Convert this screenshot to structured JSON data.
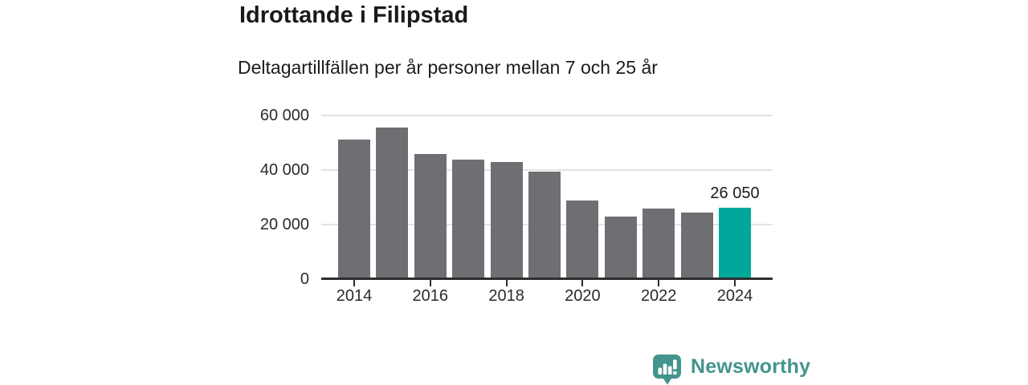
{
  "title": "Idrottande i Filipstad",
  "subtitle": "Deltagartillfällen per år personer mellan 7 och 25 år",
  "footer": {
    "brand": "Newsworthy",
    "logo_icon": "bar-chart-speech-bubble-icon"
  },
  "colors": {
    "bar": "#6f6e73",
    "bar_highlight": "#00a79b",
    "grid": "#e3e3e3",
    "axis": "#2d2d2d",
    "text": "#1a1a1a",
    "brand": "#43948d"
  },
  "chart_data": {
    "type": "bar",
    "title": "Idrottande i Filipstad",
    "subtitle": "Deltagartillfällen per år personer mellan 7 och 25 år",
    "x": [
      2014,
      2015,
      2016,
      2017,
      2018,
      2019,
      2020,
      2021,
      2022,
      2023,
      2024
    ],
    "values": [
      51100,
      55500,
      46000,
      43800,
      42900,
      39300,
      28800,
      22900,
      25900,
      24400,
      26050
    ],
    "highlight_index": 10,
    "highlight_label": "26 050",
    "xtick_years": [
      2014,
      2016,
      2018,
      2020,
      2022,
      2024
    ],
    "yticks": [
      0,
      20000,
      40000,
      60000
    ],
    "ytick_labels": [
      "0",
      "20 000",
      "40 000",
      "60 000"
    ],
    "ylim": [
      0,
      60000
    ],
    "grid": true,
    "legend": null
  }
}
